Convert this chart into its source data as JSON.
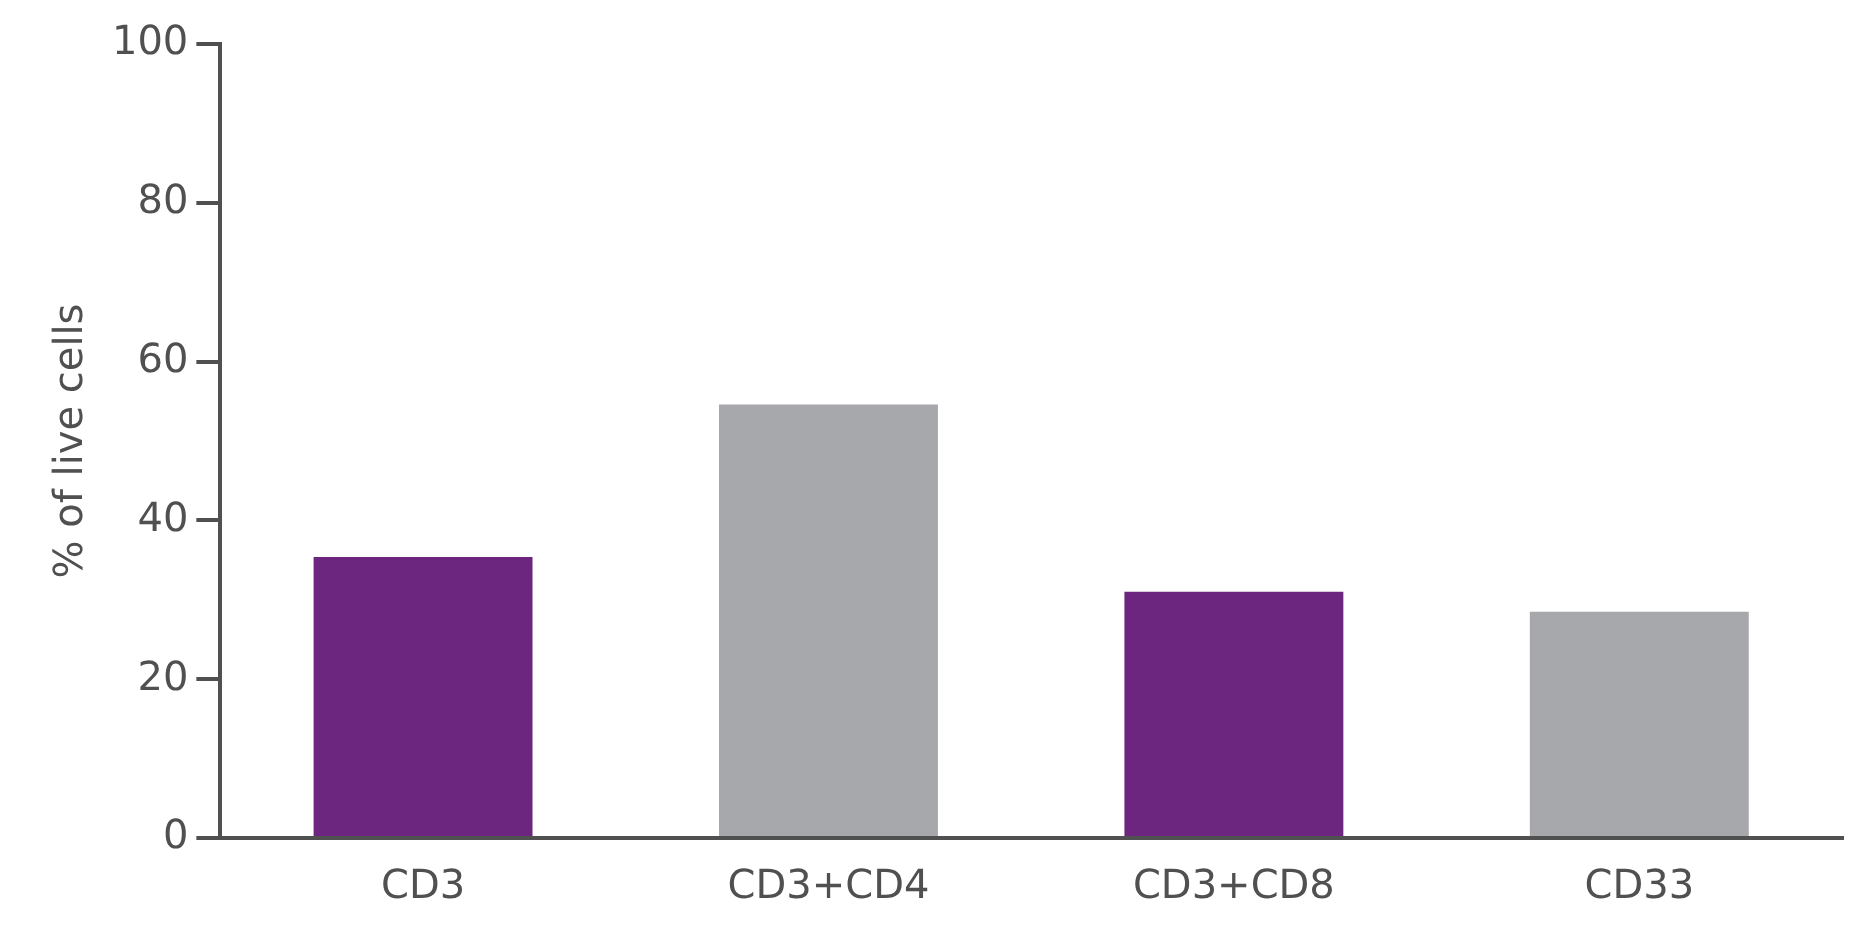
{
  "chart_data": {
    "type": "bar",
    "ylabel": "% of live cells",
    "categories": [
      "CD3",
      "CD3+CD4",
      "CD3+CD8",
      "CD33"
    ],
    "values": [
      35.4,
      54.6,
      31.0,
      28.5
    ],
    "colors": [
      "#6d267f",
      "#a7a8ab",
      "#6d267f",
      "#a7a8ab"
    ],
    "ylim": [
      0,
      100
    ],
    "yticks": [
      0,
      20,
      40,
      60,
      80,
      100
    ],
    "grid": false,
    "legend": false
  }
}
